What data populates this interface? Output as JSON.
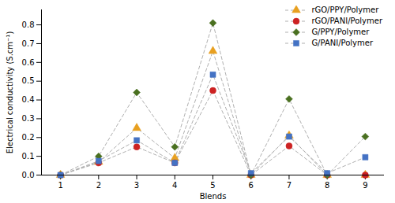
{
  "chart_data": {
    "type": "line",
    "xlabel": "Blends",
    "ylabel": "Electrical conductivity (S.cm⁻¹)",
    "x": [
      1,
      2,
      3,
      4,
      5,
      6,
      7,
      8,
      9
    ],
    "series": [
      {
        "name": "rGO/PPY/Polymer",
        "color": "#E8A020",
        "marker": "triangle",
        "line_style": "dashed",
        "values": [
          0.0,
          0.07,
          0.25,
          0.09,
          0.66,
          0.0,
          0.21,
          0.0,
          0.0
        ]
      },
      {
        "name": "rGO/PANI/Polymer",
        "color": "#CC2222",
        "marker": "circle",
        "line_style": "dashed",
        "values": [
          0.0,
          0.065,
          0.15,
          0.065,
          0.45,
          0.0,
          0.155,
          0.0,
          0.0
        ]
      },
      {
        "name": "G/PPY/Polymer",
        "color": "#4A7020",
        "marker": "diamond",
        "line_style": "dashed",
        "values": [
          0.0,
          0.1,
          0.44,
          0.15,
          0.81,
          0.0,
          0.405,
          0.0,
          0.205
        ]
      },
      {
        "name": "G/PANI/Polymer",
        "color": "#4472C4",
        "marker": "square",
        "line_style": "dashed",
        "values": [
          0.0,
          0.075,
          0.185,
          0.065,
          0.535,
          0.01,
          0.205,
          0.01,
          0.095
        ]
      }
    ],
    "xlim": [
      0.5,
      9.5
    ],
    "ylim": [
      0,
      0.88
    ],
    "xticks": [
      1,
      2,
      3,
      4,
      5,
      6,
      7,
      8,
      9
    ],
    "yticks": [
      {
        "value": 0.0,
        "label": "0.0"
      },
      0.1,
      0.2,
      0.3,
      0.4,
      0.5,
      0.6,
      0.7,
      0.8
    ],
    "grid": false,
    "legend": "upper right"
  }
}
